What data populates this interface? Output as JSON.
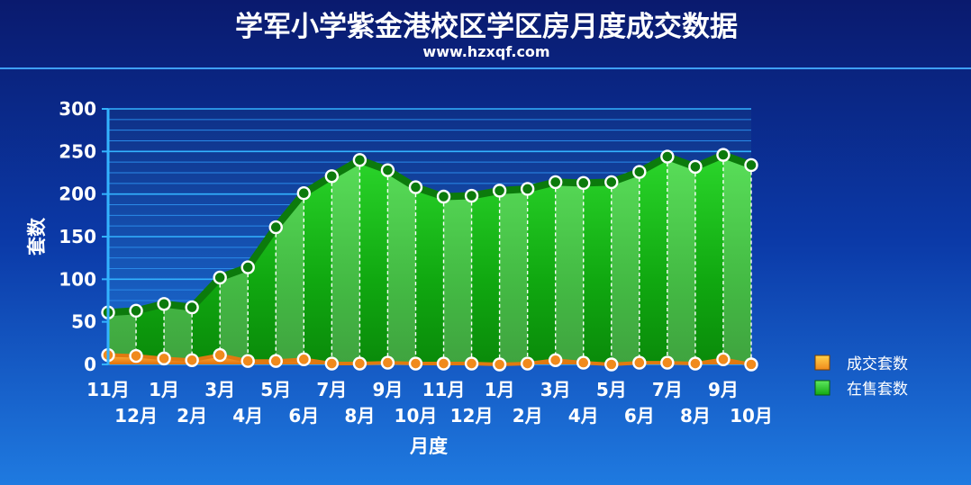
{
  "chart_data": {
    "type": "area",
    "title": "学军小学紫金港校区学区房月度成交数据",
    "subtitle": "www.hzxqf.com",
    "xlabel": "月度",
    "ylabel": "套数",
    "ylim": [
      0,
      300
    ],
    "yticks": [
      "0",
      "50",
      "100",
      "150",
      "200",
      "250",
      "300"
    ],
    "categories": [
      "11月",
      "12月",
      "1月",
      "2月",
      "3月",
      "4月",
      "5月",
      "6月",
      "7月",
      "8月",
      "9月",
      "10月",
      "11月",
      "12月",
      "1月",
      "2月",
      "3月",
      "4月",
      "5月",
      "6月",
      "7月",
      "8月",
      "9月",
      "10月"
    ],
    "series": [
      {
        "name": "成交套数",
        "color": "#f08a1c",
        "values": [
          11,
          10,
          7,
          5,
          11,
          4,
          4,
          6,
          1,
          1,
          2,
          1,
          1,
          1,
          0,
          1,
          5,
          2,
          0,
          2,
          2,
          1,
          6,
          0
        ]
      },
      {
        "name": "在售套数",
        "color": "#1fc41f",
        "values": [
          61,
          63,
          71,
          67,
          102,
          114,
          161,
          201,
          221,
          240,
          228,
          208,
          197,
          198,
          204,
          206,
          214,
          213,
          214,
          226,
          244,
          232,
          246,
          234
        ]
      }
    ],
    "legend_position": "right",
    "grid": true
  }
}
